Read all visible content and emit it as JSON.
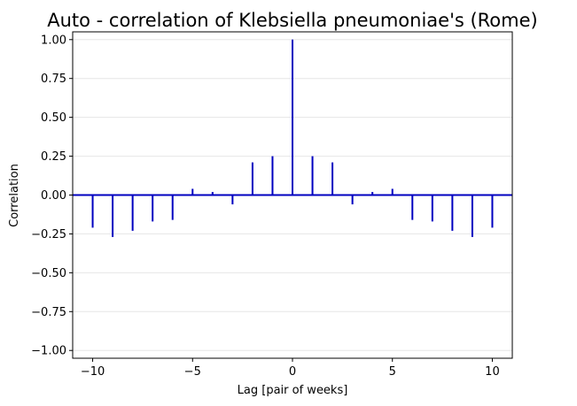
{
  "chart_data": {
    "type": "bar",
    "title": "Auto - correlation of Klebsiella pneumoniae's (Rome)",
    "xlabel": "Lag [pair of weeks]",
    "ylabel": "Correlation",
    "x": [
      -10,
      -9,
      -8,
      -7,
      -6,
      -5,
      -4,
      -3,
      -2,
      -1,
      0,
      1,
      2,
      3,
      4,
      5,
      6,
      7,
      8,
      9,
      10
    ],
    "values": [
      -0.21,
      -0.27,
      -0.23,
      -0.17,
      -0.16,
      0.04,
      0.02,
      -0.06,
      0.21,
      0.25,
      1.0,
      0.25,
      0.21,
      -0.06,
      0.02,
      0.04,
      -0.16,
      -0.17,
      -0.23,
      -0.27,
      -0.21
    ],
    "xlim": [
      -11,
      11
    ],
    "ylim": [
      -1.05,
      1.05
    ],
    "xticks": [
      "−10",
      "−5",
      "0",
      "5",
      "10"
    ],
    "xtick_values": [
      -10,
      -5,
      0,
      5,
      10
    ],
    "yticks": [
      "−1.00",
      "−0.75",
      "−0.50",
      "−0.25",
      "0.00",
      "0.25",
      "0.50",
      "0.75",
      "1.00"
    ],
    "ytick_values": [
      -1.0,
      -0.75,
      -0.5,
      -0.25,
      0.0,
      0.25,
      0.5,
      0.75,
      1.0
    ],
    "grid": "horizontal",
    "colors": {
      "stem": "#0000c0",
      "baseline": "#0000c0",
      "grid": "#e6e6e6"
    }
  }
}
